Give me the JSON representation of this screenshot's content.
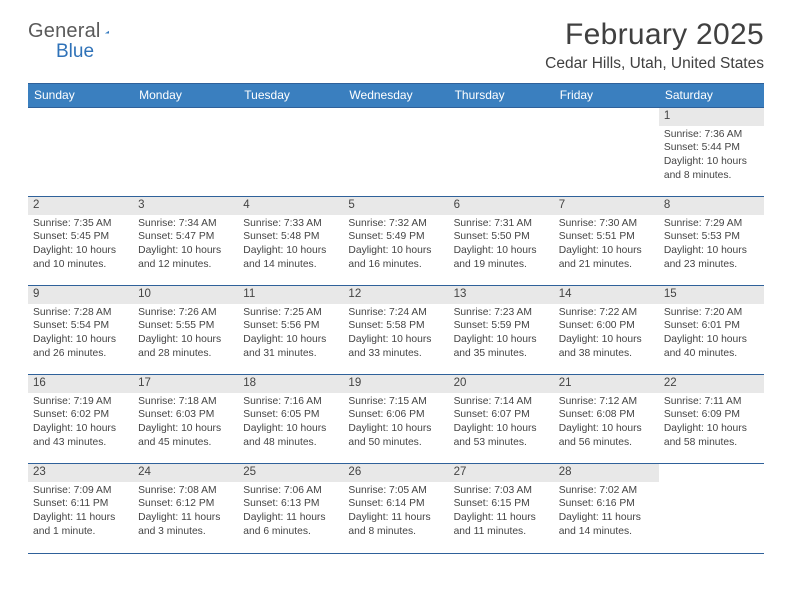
{
  "logo": {
    "text1": "General",
    "text2": "Blue",
    "triangle_color": "#2f72b8"
  },
  "title": "February 2025",
  "location": "Cedar Hills, Utah, United States",
  "colors": {
    "header_bg": "#3a7fbf",
    "header_border": "#2f619a",
    "daynum_bg": "#e8e8e8",
    "text": "#404040",
    "body_text": "#444444"
  },
  "typography": {
    "title_fontsize": 30,
    "location_fontsize": 15.5,
    "header_fontsize": 12,
    "daynum_fontsize": 11.5,
    "body_fontsize": 10.3
  },
  "dayNames": [
    "Sunday",
    "Monday",
    "Tuesday",
    "Wednesday",
    "Thursday",
    "Friday",
    "Saturday"
  ],
  "weeks": [
    [
      {
        "empty": true
      },
      {
        "empty": true
      },
      {
        "empty": true
      },
      {
        "empty": true
      },
      {
        "empty": true
      },
      {
        "empty": true
      },
      {
        "num": "1",
        "sunrise": "Sunrise: 7:36 AM",
        "sunset": "Sunset: 5:44 PM",
        "daylight": "Daylight: 10 hours and 8 minutes."
      }
    ],
    [
      {
        "num": "2",
        "sunrise": "Sunrise: 7:35 AM",
        "sunset": "Sunset: 5:45 PM",
        "daylight": "Daylight: 10 hours and 10 minutes."
      },
      {
        "num": "3",
        "sunrise": "Sunrise: 7:34 AM",
        "sunset": "Sunset: 5:47 PM",
        "daylight": "Daylight: 10 hours and 12 minutes."
      },
      {
        "num": "4",
        "sunrise": "Sunrise: 7:33 AM",
        "sunset": "Sunset: 5:48 PM",
        "daylight": "Daylight: 10 hours and 14 minutes."
      },
      {
        "num": "5",
        "sunrise": "Sunrise: 7:32 AM",
        "sunset": "Sunset: 5:49 PM",
        "daylight": "Daylight: 10 hours and 16 minutes."
      },
      {
        "num": "6",
        "sunrise": "Sunrise: 7:31 AM",
        "sunset": "Sunset: 5:50 PM",
        "daylight": "Daylight: 10 hours and 19 minutes."
      },
      {
        "num": "7",
        "sunrise": "Sunrise: 7:30 AM",
        "sunset": "Sunset: 5:51 PM",
        "daylight": "Daylight: 10 hours and 21 minutes."
      },
      {
        "num": "8",
        "sunrise": "Sunrise: 7:29 AM",
        "sunset": "Sunset: 5:53 PM",
        "daylight": "Daylight: 10 hours and 23 minutes."
      }
    ],
    [
      {
        "num": "9",
        "sunrise": "Sunrise: 7:28 AM",
        "sunset": "Sunset: 5:54 PM",
        "daylight": "Daylight: 10 hours and 26 minutes."
      },
      {
        "num": "10",
        "sunrise": "Sunrise: 7:26 AM",
        "sunset": "Sunset: 5:55 PM",
        "daylight": "Daylight: 10 hours and 28 minutes."
      },
      {
        "num": "11",
        "sunrise": "Sunrise: 7:25 AM",
        "sunset": "Sunset: 5:56 PM",
        "daylight": "Daylight: 10 hours and 31 minutes."
      },
      {
        "num": "12",
        "sunrise": "Sunrise: 7:24 AM",
        "sunset": "Sunset: 5:58 PM",
        "daylight": "Daylight: 10 hours and 33 minutes."
      },
      {
        "num": "13",
        "sunrise": "Sunrise: 7:23 AM",
        "sunset": "Sunset: 5:59 PM",
        "daylight": "Daylight: 10 hours and 35 minutes."
      },
      {
        "num": "14",
        "sunrise": "Sunrise: 7:22 AM",
        "sunset": "Sunset: 6:00 PM",
        "daylight": "Daylight: 10 hours and 38 minutes."
      },
      {
        "num": "15",
        "sunrise": "Sunrise: 7:20 AM",
        "sunset": "Sunset: 6:01 PM",
        "daylight": "Daylight: 10 hours and 40 minutes."
      }
    ],
    [
      {
        "num": "16",
        "sunrise": "Sunrise: 7:19 AM",
        "sunset": "Sunset: 6:02 PM",
        "daylight": "Daylight: 10 hours and 43 minutes."
      },
      {
        "num": "17",
        "sunrise": "Sunrise: 7:18 AM",
        "sunset": "Sunset: 6:03 PM",
        "daylight": "Daylight: 10 hours and 45 minutes."
      },
      {
        "num": "18",
        "sunrise": "Sunrise: 7:16 AM",
        "sunset": "Sunset: 6:05 PM",
        "daylight": "Daylight: 10 hours and 48 minutes."
      },
      {
        "num": "19",
        "sunrise": "Sunrise: 7:15 AM",
        "sunset": "Sunset: 6:06 PM",
        "daylight": "Daylight: 10 hours and 50 minutes."
      },
      {
        "num": "20",
        "sunrise": "Sunrise: 7:14 AM",
        "sunset": "Sunset: 6:07 PM",
        "daylight": "Daylight: 10 hours and 53 minutes."
      },
      {
        "num": "21",
        "sunrise": "Sunrise: 7:12 AM",
        "sunset": "Sunset: 6:08 PM",
        "daylight": "Daylight: 10 hours and 56 minutes."
      },
      {
        "num": "22",
        "sunrise": "Sunrise: 7:11 AM",
        "sunset": "Sunset: 6:09 PM",
        "daylight": "Daylight: 10 hours and 58 minutes."
      }
    ],
    [
      {
        "num": "23",
        "sunrise": "Sunrise: 7:09 AM",
        "sunset": "Sunset: 6:11 PM",
        "daylight": "Daylight: 11 hours and 1 minute."
      },
      {
        "num": "24",
        "sunrise": "Sunrise: 7:08 AM",
        "sunset": "Sunset: 6:12 PM",
        "daylight": "Daylight: 11 hours and 3 minutes."
      },
      {
        "num": "25",
        "sunrise": "Sunrise: 7:06 AM",
        "sunset": "Sunset: 6:13 PM",
        "daylight": "Daylight: 11 hours and 6 minutes."
      },
      {
        "num": "26",
        "sunrise": "Sunrise: 7:05 AM",
        "sunset": "Sunset: 6:14 PM",
        "daylight": "Daylight: 11 hours and 8 minutes."
      },
      {
        "num": "27",
        "sunrise": "Sunrise: 7:03 AM",
        "sunset": "Sunset: 6:15 PM",
        "daylight": "Daylight: 11 hours and 11 minutes."
      },
      {
        "num": "28",
        "sunrise": "Sunrise: 7:02 AM",
        "sunset": "Sunset: 6:16 PM",
        "daylight": "Daylight: 11 hours and 14 minutes."
      },
      {
        "empty": true
      }
    ]
  ]
}
